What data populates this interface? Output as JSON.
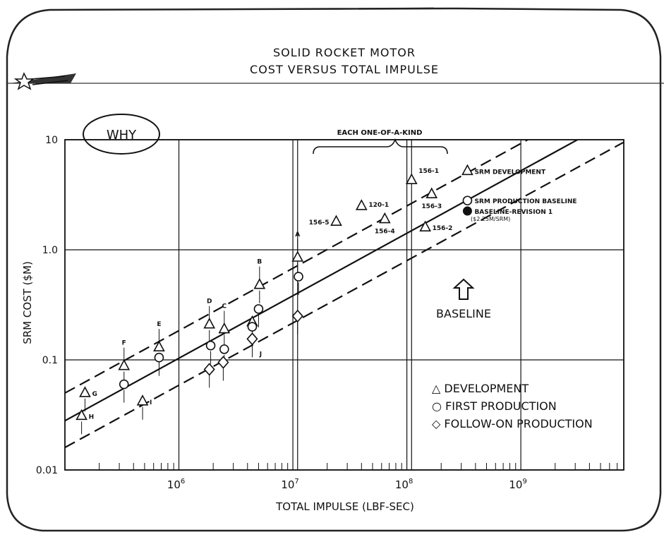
{
  "header": {
    "title_line1": "SOLID ROCKET MOTOR",
    "title_line2": "COST VERSUS TOTAL IMPULSE",
    "badge": "WHY"
  },
  "chart_data": {
    "type": "scatter",
    "xscale": "log",
    "yscale": "log",
    "xlim": [
      100000,
      8000000000
    ],
    "ylim": [
      0.01,
      10
    ],
    "xlabel": "TOTAL IMPULSE (LBF-SEC)",
    "ylabel": "SRM COST ($M)",
    "grid": true,
    "x_ticks": [
      {
        "value": 1000000,
        "base": "10",
        "exp": "6"
      },
      {
        "value": 10000000,
        "base": "10",
        "exp": "7"
      },
      {
        "value": 100000000,
        "base": "10",
        "exp": "8"
      },
      {
        "value": 1000000000,
        "base": "10",
        "exp": "9"
      }
    ],
    "y_ticks": [
      {
        "value": 10,
        "label": "10"
      },
      {
        "value": 1,
        "label": "1.0"
      },
      {
        "value": 0.1,
        "label": "0.1"
      },
      {
        "value": 0.01,
        "label": "0.01"
      }
    ],
    "trend_lines": [
      {
        "style": "dashed",
        "from": [
          100000,
          0.05
        ],
        "to": [
          8000000000,
          30
        ]
      },
      {
        "style": "solid",
        "from": [
          100000,
          0.028
        ],
        "to": [
          8000000000,
          17
        ]
      },
      {
        "style": "dashed",
        "from": [
          100000,
          0.016
        ],
        "to": [
          8000000000,
          9.5
        ]
      }
    ],
    "series": [
      {
        "name": "DEVELOPMENT",
        "marker": "triangle",
        "points": [
          {
            "x": 150000,
            "y": 0.05,
            "label": "G"
          },
          {
            "x": 140000,
            "y": 0.031,
            "label": "H"
          },
          {
            "x": 330000,
            "y": 0.088,
            "label": "F"
          },
          {
            "x": 480000,
            "y": 0.042,
            "label": "I"
          },
          {
            "x": 670000,
            "y": 0.13,
            "label": "E"
          },
          {
            "x": 1850000,
            "y": 0.21,
            "label": "D"
          },
          {
            "x": 2500000,
            "y": 0.19,
            "label": "C"
          },
          {
            "x": 4400000,
            "y": 0.22,
            "label": ""
          },
          {
            "x": 5100000,
            "y": 0.48,
            "label": "B"
          },
          {
            "x": 11000000,
            "y": 0.85,
            "label": "A"
          },
          {
            "x": 24000000,
            "y": 1.8,
            "label": "156-5"
          },
          {
            "x": 40000000,
            "y": 2.5,
            "label": "120-1"
          },
          {
            "x": 64000000,
            "y": 1.9,
            "label": "156-4"
          },
          {
            "x": 110000000,
            "y": 4.3,
            "label": "156-1"
          },
          {
            "x": 145000000,
            "y": 1.6,
            "label": "156-2"
          },
          {
            "x": 165000000,
            "y": 3.2,
            "label": "156-3"
          },
          {
            "x": 340000000,
            "y": 5.2,
            "label": "SRM DEVELOPMENT"
          }
        ]
      },
      {
        "name": "FIRST PRODUCTION",
        "marker": "circle",
        "points": [
          {
            "x": 330000,
            "y": 0.06,
            "label": ""
          },
          {
            "x": 670000,
            "y": 0.105,
            "label": ""
          },
          {
            "x": 1900000,
            "y": 0.135,
            "label": ""
          },
          {
            "x": 2500000,
            "y": 0.125,
            "label": ""
          },
          {
            "x": 4400000,
            "y": 0.2,
            "label": ""
          },
          {
            "x": 5000000,
            "y": 0.29,
            "label": ""
          },
          {
            "x": 11200000,
            "y": 0.57,
            "label": ""
          },
          {
            "x": 340000000,
            "y": 2.8,
            "label": "SRM PRODUCTION BASELINE"
          }
        ]
      },
      {
        "name": "FOLLOW-ON PRODUCTION",
        "marker": "diamond",
        "points": [
          {
            "x": 1850000,
            "y": 0.082,
            "label": ""
          },
          {
            "x": 2450000,
            "y": 0.095,
            "label": ""
          },
          {
            "x": 4400000,
            "y": 0.155,
            "label": "J"
          },
          {
            "x": 11000000,
            "y": 0.25,
            "label": ""
          }
        ]
      },
      {
        "name": "BASELINE-REVISION 1",
        "marker": "filled-circle",
        "points": [
          {
            "x": 340000000,
            "y": 2.25,
            "label": "BASELINE-REVISION 1"
          }
        ]
      }
    ],
    "annotations": {
      "bracket": "EACH ONE-OF-A-KIND",
      "baseline_arrow": "BASELINE",
      "revision_cost": "($2.25M/SRM)"
    },
    "legend": {
      "position": "bottom-right",
      "items": [
        {
          "symbol": "△",
          "label": "DEVELOPMENT"
        },
        {
          "symbol": "○",
          "label": "FIRST PRODUCTION"
        },
        {
          "symbol": "◇",
          "label": "FOLLOW-ON PRODUCTION"
        }
      ]
    }
  }
}
